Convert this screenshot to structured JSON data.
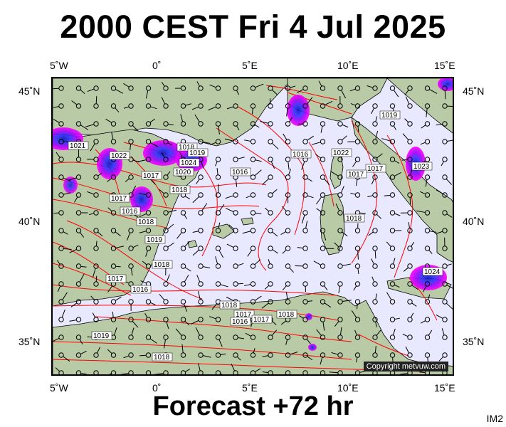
{
  "title": "2000 CEST Fri 4 Jul 2025",
  "footer": "Forecast +72 hr",
  "image_code": "IM2",
  "copyright": "Copyright metvuw.com",
  "axes": {
    "top": [
      "5˚W",
      "0˚",
      "5˚E",
      "10˚E",
      "15˚E"
    ],
    "bottom": [
      "5˚W",
      "0˚",
      "5˚E",
      "10˚E",
      "15˚E"
    ],
    "left": [
      "45˚N",
      "40˚N",
      "35˚N"
    ],
    "right": [
      "45˚N",
      "40˚N",
      "35˚N"
    ]
  },
  "isobar_labels": [
    "1021",
    "1022",
    "1017",
    "1018",
    "1019",
    "1024",
    "1020",
    "1016",
    "1018",
    "1017",
    "1016",
    "1018",
    "1019",
    "1018",
    "1017",
    "1016",
    "1018",
    "1017",
    "1016",
    "1017",
    "1018",
    "1019",
    "1018",
    "1017",
    "1016",
    "1019",
    "1017",
    "1018",
    "1022",
    "1023",
    "1024"
  ],
  "colors": {
    "sea": "#e8e8ff",
    "land": "#b9cba6",
    "isobar": "#ff0000",
    "rain_magenta": "#ff00ff",
    "rain_blue": "#2020ff"
  }
}
